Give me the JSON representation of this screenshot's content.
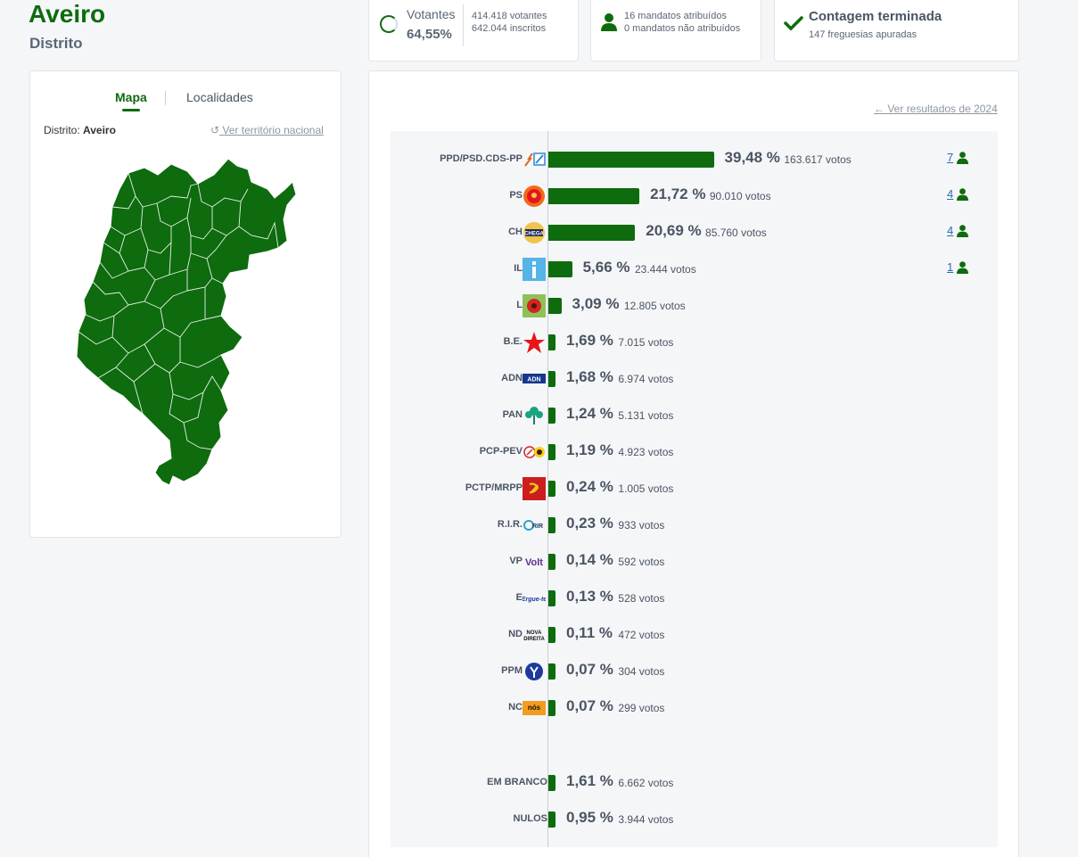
{
  "header": {
    "title": "Aveiro",
    "subtitle": "Distrito"
  },
  "turnout": {
    "label": "Votantes",
    "percent": "64,55%",
    "voters": "414.418 votantes",
    "registered": "642.044 inscritos"
  },
  "seats_summary": {
    "assigned": "16 mandatos atribuídos",
    "unassigned": "0 mandatos não atribuídos"
  },
  "count_status": {
    "title": "Contagem terminada",
    "parishes": "147 freguesias apuradas"
  },
  "map_panel": {
    "tabs": [
      "Mapa",
      "Localidades"
    ],
    "active_tab": "Mapa",
    "district_prefix": "Distrito:",
    "district_name": "Aveiro",
    "national_link": "Ver território nacional",
    "map_color": "#0e6b0e"
  },
  "results": {
    "previous_link": "Ver resultados de 2024",
    "accent_color": "#0e6b0e",
    "rows": [
      {
        "party": "PPD/PSD.CDS-PP",
        "percent": "39,48 %",
        "votes": "163.617 votos",
        "seats": "7",
        "logo": "ad-logo"
      },
      {
        "party": "PS",
        "percent": "21,72 %",
        "votes": "90.010 votos",
        "seats": "4",
        "logo": "ps-logo"
      },
      {
        "party": "CH",
        "percent": "20,69 %",
        "votes": "85.760 votos",
        "seats": "4",
        "logo": "chega-logo"
      },
      {
        "party": "IL",
        "percent": "5,66 %",
        "votes": "23.444 votos",
        "seats": "1",
        "logo": "il-logo"
      },
      {
        "party": "L",
        "percent": "3,09 %",
        "votes": "12.805 votos",
        "seats": "",
        "logo": "livre-logo"
      },
      {
        "party": "B.E.",
        "percent": "1,69 %",
        "votes": "7.015 votos",
        "seats": "",
        "logo": "be-logo"
      },
      {
        "party": "ADN",
        "percent": "1,68 %",
        "votes": "6.974 votos",
        "seats": "",
        "logo": "adn-logo"
      },
      {
        "party": "PAN",
        "percent": "1,24 %",
        "votes": "5.131 votos",
        "seats": "",
        "logo": "pan-logo"
      },
      {
        "party": "PCP-PEV",
        "percent": "1,19 %",
        "votes": "4.923 votos",
        "seats": "",
        "logo": "cdu-logo"
      },
      {
        "party": "PCTP/MRPP",
        "percent": "0,24 %",
        "votes": "1.005 votos",
        "seats": "",
        "logo": "pctp-logo"
      },
      {
        "party": "R.I.R.",
        "percent": "0,23 %",
        "votes": "933 votos",
        "seats": "",
        "logo": "rir-logo"
      },
      {
        "party": "VP",
        "percent": "0,14 %",
        "votes": "592 votos",
        "seats": "",
        "logo": "volt-logo"
      },
      {
        "party": "E",
        "percent": "0,13 %",
        "votes": "528 votos",
        "seats": "",
        "logo": "ergue-te-logo"
      },
      {
        "party": "ND",
        "percent": "0,11 %",
        "votes": "472 votos",
        "seats": "",
        "logo": "nova-direita-logo"
      },
      {
        "party": "PPM",
        "percent": "0,07 %",
        "votes": "304 votos",
        "seats": "",
        "logo": "ppm-logo"
      },
      {
        "party": "NC",
        "percent": "0,07 %",
        "votes": "299 votos",
        "seats": "",
        "logo": "nos-cidadaos-logo"
      }
    ],
    "other_rows": [
      {
        "party": "EM BRANCO",
        "percent": "1,61 %",
        "votes": "6.662 votos"
      },
      {
        "party": "NULOS",
        "percent": "0,95 %",
        "votes": "3.944 votos"
      }
    ]
  }
}
